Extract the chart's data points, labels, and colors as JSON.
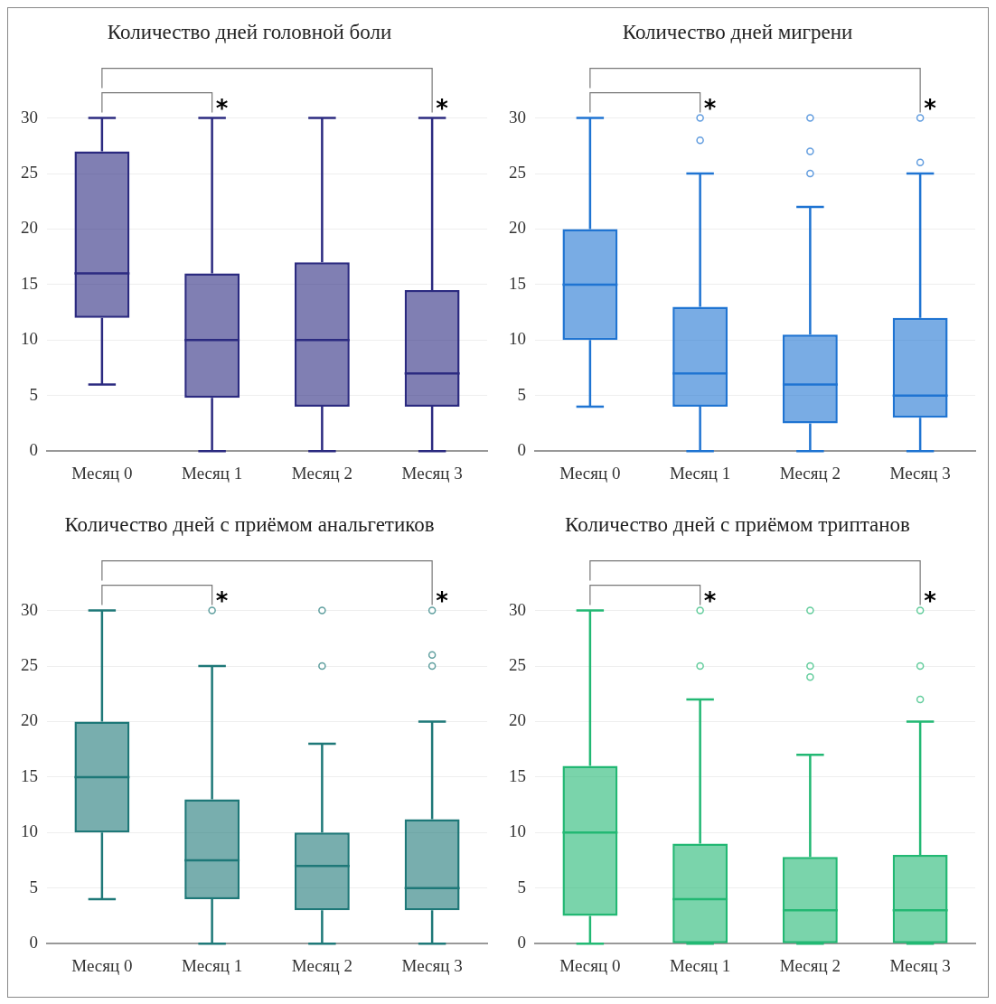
{
  "chart_data": [
    {
      "type": "box",
      "title": "Количество дней головной боли",
      "categories": [
        "Месяц 0",
        "Месяц 1",
        "Месяц 2",
        "Месяц 3"
      ],
      "ylim": [
        0,
        30
      ],
      "yticks": [
        0,
        5,
        10,
        15,
        20,
        25,
        30
      ],
      "grid": "y",
      "series": [
        {
          "color": "#2b2a80",
          "boxes": [
            {
              "low": 6,
              "q1": 12,
              "median": 16,
              "q3": 27,
              "high": 30
            },
            {
              "low": 0,
              "q1": 4.8,
              "median": 10,
              "q3": 16,
              "high": 30
            },
            {
              "low": 0,
              "q1": 4,
              "median": 10,
              "q3": 17,
              "high": 30
            },
            {
              "low": 0,
              "q1": 4,
              "median": 7,
              "q3": 14.5,
              "high": 30
            }
          ]
        }
      ],
      "annotations": [
        "*",
        "*"
      ]
    },
    {
      "type": "box",
      "title": "Количество дней мигрени",
      "categories": [
        "Месяц 0",
        "Месяц 1",
        "Месяц 2",
        "Месяц 3"
      ],
      "ylim": [
        0,
        30
      ],
      "yticks": [
        0,
        5,
        10,
        15,
        20,
        25,
        30
      ],
      "grid": "y",
      "series": [
        {
          "color": "#1f74d2",
          "boxes": [
            {
              "low": 4,
              "q1": 10,
              "median": 15,
              "q3": 20,
              "high": 30
            },
            {
              "low": 0,
              "q1": 4,
              "median": 7,
              "q3": 13,
              "high": 25,
              "outliers": [
                28,
                30
              ]
            },
            {
              "low": 0,
              "q1": 2.5,
              "median": 6,
              "q3": 10.5,
              "high": 22,
              "outliers": [
                25,
                27,
                30
              ]
            },
            {
              "low": 0,
              "q1": 3,
              "median": 5,
              "q3": 12,
              "high": 25,
              "outliers": [
                26,
                30
              ]
            }
          ]
        }
      ],
      "annotations": [
        "*",
        "*"
      ]
    },
    {
      "type": "box",
      "title": "Количество дней с приёмом анальгетиков",
      "categories": [
        "Месяц 0",
        "Месяц 1",
        "Месяц 2",
        "Месяц 3"
      ],
      "ylim": [
        0,
        30
      ],
      "yticks": [
        0,
        5,
        10,
        15,
        20,
        25,
        30
      ],
      "grid": "y",
      "series": [
        {
          "color": "#1e7878",
          "boxes": [
            {
              "low": 4,
              "q1": 10,
              "median": 15,
              "q3": 20,
              "high": 30
            },
            {
              "low": 0,
              "q1": 4,
              "median": 7.5,
              "q3": 13,
              "high": 25,
              "outliers": [
                30
              ]
            },
            {
              "low": 0,
              "q1": 3,
              "median": 7,
              "q3": 10,
              "high": 18,
              "outliers": [
                25,
                30
              ]
            },
            {
              "low": 0,
              "q1": 3,
              "median": 5,
              "q3": 11.2,
              "high": 20,
              "outliers": [
                25,
                26,
                30
              ]
            }
          ]
        }
      ],
      "annotations": [
        "*",
        "*"
      ]
    },
    {
      "type": "box",
      "title": "Количество дней с приёмом триптанов",
      "categories": [
        "Месяц 0",
        "Месяц 1",
        "Месяц 2",
        "Месяц 3"
      ],
      "ylim": [
        0,
        30
      ],
      "yticks": [
        0,
        5,
        10,
        15,
        20,
        25,
        30
      ],
      "grid": "y",
      "series": [
        {
          "color": "#22b873",
          "boxes": [
            {
              "low": 0,
              "q1": 2.5,
              "median": 10,
              "q3": 16,
              "high": 30
            },
            {
              "low": 0,
              "q1": 0,
              "median": 4,
              "q3": 9,
              "high": 22,
              "outliers": [
                25,
                30
              ]
            },
            {
              "low": 0,
              "q1": 0,
              "median": 3,
              "q3": 7.8,
              "high": 17,
              "outliers": [
                24,
                25,
                30
              ]
            },
            {
              "low": 0,
              "q1": 0,
              "median": 3,
              "q3": 8,
              "high": 20,
              "outliers": [
                22,
                25,
                30
              ]
            }
          ]
        }
      ],
      "annotations": [
        "*",
        "*"
      ]
    }
  ]
}
